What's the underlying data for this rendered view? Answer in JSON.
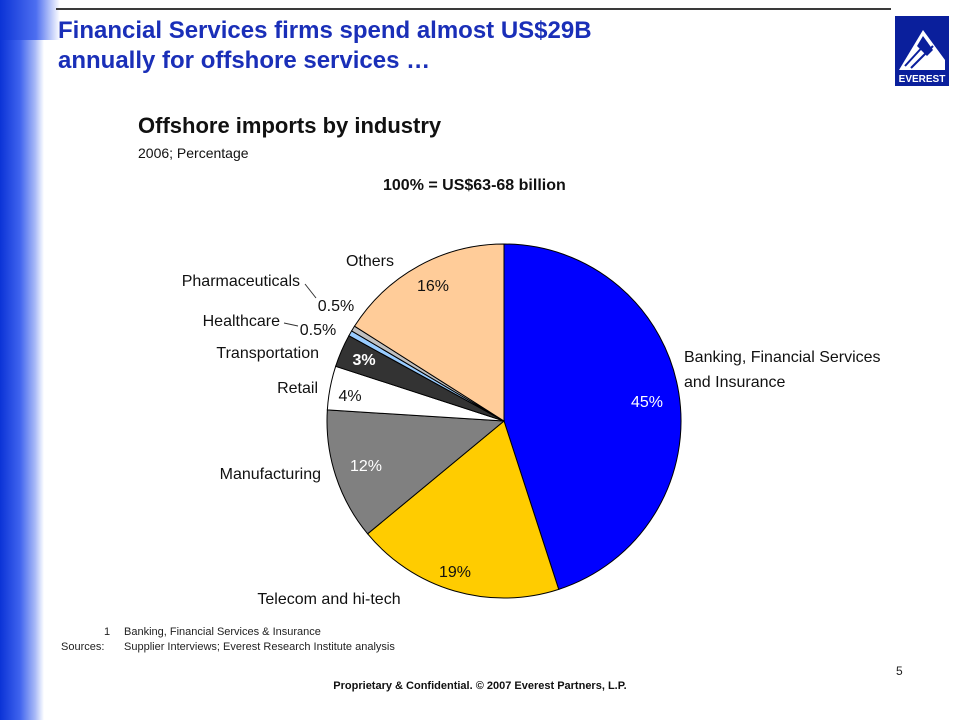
{
  "slide": {
    "headline_line1": "Financial Services firms spend almost US$29B",
    "headline_line2": "annually for offshore services …",
    "logo_text": "EVEREST",
    "page_number": "5",
    "confidential": "Proprietary & Confidential. © 2007 Everest Partners, L.P.",
    "footnote_number": "1",
    "footnote_text": "Banking, Financial Services & Insurance",
    "sources_label": "Sources:",
    "sources_text": "Supplier Interviews; Everest Research Institute analysis",
    "brand_color": "#1a2fb8"
  },
  "chart_data": {
    "type": "pie",
    "title": "Offshore imports by industry",
    "subtitle": "2006; Percentage",
    "total_label": "100% = US$63-68 billion",
    "start_angle_deg": 0,
    "direction": "clockwise",
    "slices": [
      {
        "name": "Banking, Financial Services and Insurance",
        "label_line1": "Banking, Financial Services",
        "label_line2": "and Insurance",
        "value": 45,
        "value_label": "45%",
        "color": "#0000ff"
      },
      {
        "name": "Telecom and hi-tech",
        "value": 19,
        "value_label": "19%",
        "color": "#ffcc00"
      },
      {
        "name": "Manufacturing",
        "value": 12,
        "value_label": "12%",
        "color": "#808080"
      },
      {
        "name": "Retail",
        "value": 4,
        "value_label": "4%",
        "color": "#ffffff"
      },
      {
        "name": "Transportation",
        "value": 3,
        "value_label": "3%",
        "color": "#333333"
      },
      {
        "name": "Healthcare",
        "value": 0.5,
        "value_label": "0.5%",
        "color": "#99ccff"
      },
      {
        "name": "Pharmaceuticals",
        "value": 0.5,
        "value_label": "0.5%",
        "color": "#c0c0c0"
      },
      {
        "name": "Others",
        "value": 16,
        "value_label": "16%",
        "color": "#ffcc99"
      }
    ]
  }
}
